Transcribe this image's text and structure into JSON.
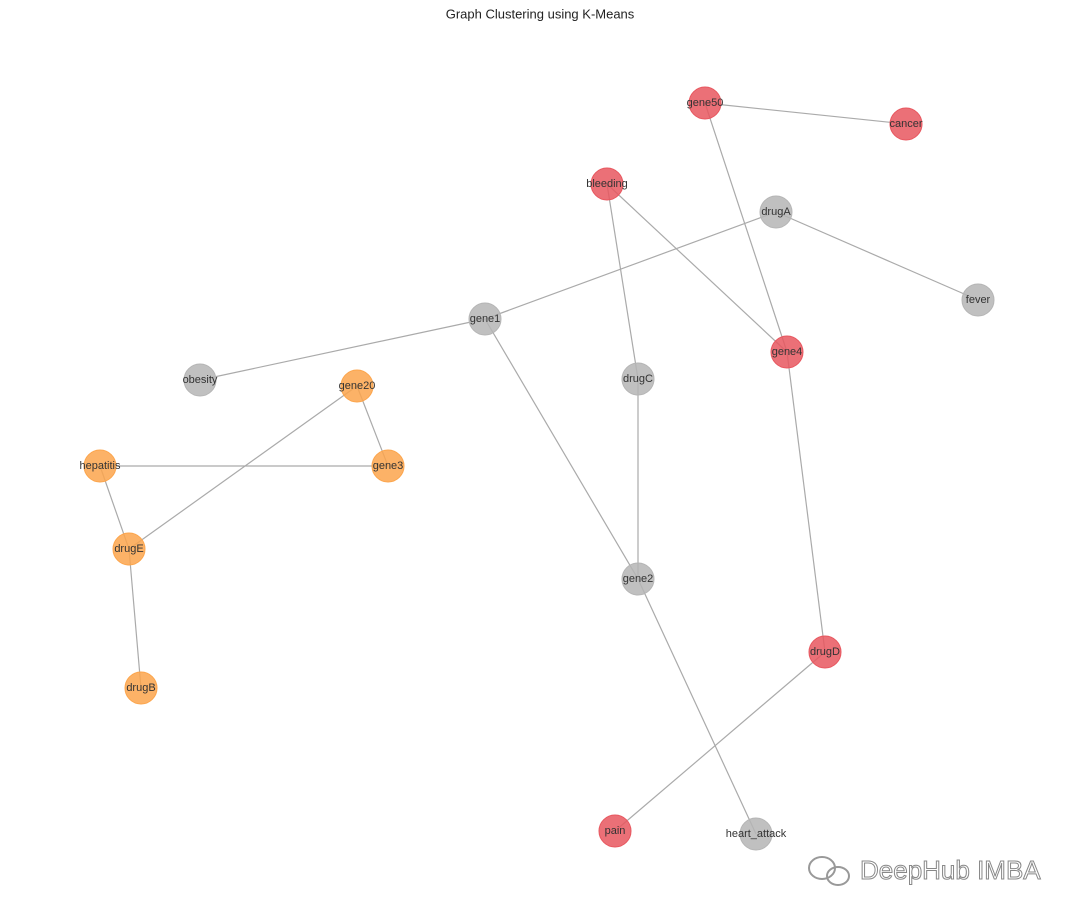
{
  "title": "Graph Clustering using K-Means",
  "nodes": [
    {
      "label": "gene50",
      "color": "#e8575f"
    },
    {
      "label": "cancer",
      "color": "#e8575f"
    },
    {
      "label": "bleeding",
      "color": "#e8575f"
    },
    {
      "label": "drugA",
      "color": "#b5b5b5"
    },
    {
      "label": "fever",
      "color": "#b5b5b5"
    },
    {
      "label": "gene1",
      "color": "#b5b5b5"
    },
    {
      "label": "gene4",
      "color": "#e8575f"
    },
    {
      "label": "obesity",
      "color": "#b5b5b5"
    },
    {
      "label": "gene20",
      "color": "#fca54c"
    },
    {
      "label": "drugC",
      "color": "#b5b5b5"
    },
    {
      "label": "hepatitis",
      "color": "#fca54c"
    },
    {
      "label": "gene3",
      "color": "#fca54c"
    },
    {
      "label": "drugE",
      "color": "#fca54c"
    },
    {
      "label": "gene2",
      "color": "#b5b5b5"
    },
    {
      "label": "drugD",
      "color": "#e8575f"
    },
    {
      "label": "drugB",
      "color": "#fca54c"
    },
    {
      "label": "pain",
      "color": "#e8575f"
    },
    {
      "label": "heart_attack",
      "color": "#b5b5b5"
    }
  ],
  "watermark": "DeepHub IMBA"
}
